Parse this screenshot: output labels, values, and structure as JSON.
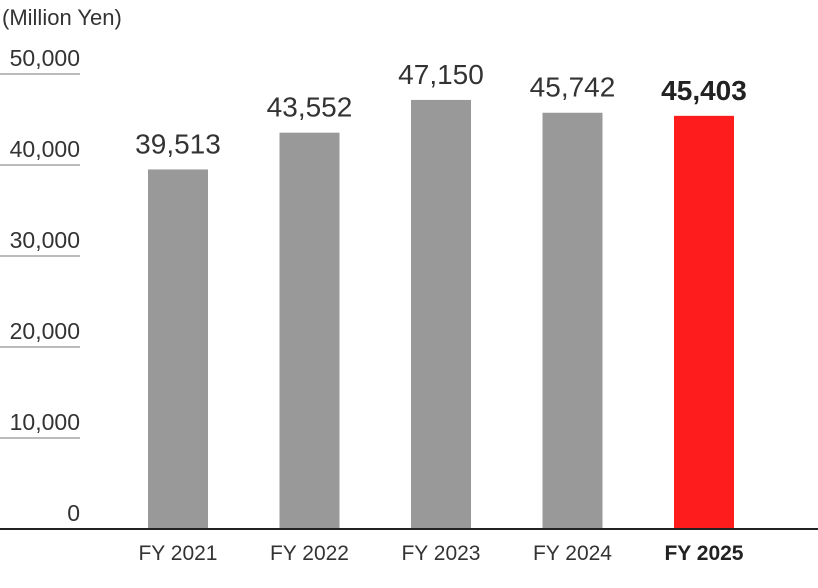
{
  "chart_data": {
    "type": "bar",
    "unit_label": "(Million Yen)",
    "categories": [
      "FY 2021",
      "FY 2022",
      "FY 2023",
      "FY 2024",
      "FY 2025"
    ],
    "values": [
      39513,
      43552,
      47150,
      45742,
      45403
    ],
    "value_labels": [
      "39,513",
      "43,552",
      "47,150",
      "45,742",
      "45,403"
    ],
    "highlight_index": 4,
    "ylim": [
      0,
      50000
    ],
    "yticks": [
      0,
      10000,
      20000,
      30000,
      40000,
      50000
    ],
    "ytick_labels": [
      "0",
      "10,000",
      "20,000",
      "30,000",
      "40,000",
      "50,000"
    ],
    "grid": true,
    "colors": {
      "bar": "#999999",
      "highlight": "#ff1c1c"
    }
  }
}
